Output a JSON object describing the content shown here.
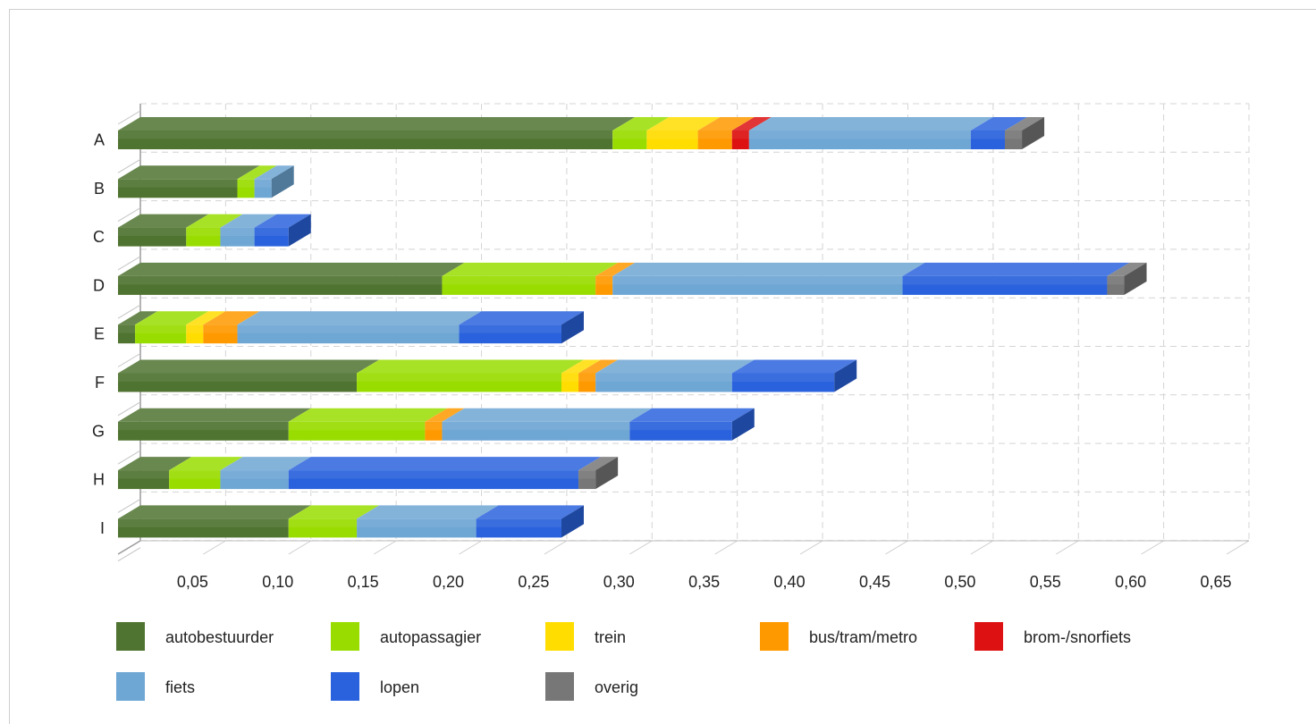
{
  "chart_data": {
    "type": "bar",
    "orientation": "horizontal",
    "stacked": true,
    "three_d": true,
    "title": "",
    "xlabel": "",
    "ylabel": "",
    "xlim": [
      0,
      0.65
    ],
    "x_ticks": [
      "0,05",
      "0,10",
      "0,15",
      "0,20",
      "0,25",
      "0,30",
      "0,35",
      "0,40",
      "0,45",
      "0,50",
      "0,55",
      "0,60",
      "0,65"
    ],
    "grid": true,
    "legend_position": "bottom",
    "categories": [
      "A",
      "B",
      "C",
      "D",
      "E",
      "F",
      "G",
      "H",
      "I"
    ],
    "series": [
      {
        "name": "autobestuurder",
        "color": "#4f7330",
        "values": [
          0.29,
          0.07,
          0.04,
          0.19,
          0.01,
          0.14,
          0.1,
          0.03,
          0.1
        ]
      },
      {
        "name": "autopassagier",
        "color": "#99dd00",
        "values": [
          0.02,
          0.01,
          0.02,
          0.09,
          0.03,
          0.12,
          0.08,
          0.03,
          0.04
        ]
      },
      {
        "name": "trein",
        "color": "#ffdd00",
        "values": [
          0.03,
          0.0,
          0.0,
          0.0,
          0.01,
          0.01,
          0.0,
          0.0,
          0.0
        ]
      },
      {
        "name": "bus/tram/metro",
        "color": "#ff9900",
        "values": [
          0.02,
          0.0,
          0.0,
          0.01,
          0.02,
          0.01,
          0.01,
          0.0,
          0.0
        ]
      },
      {
        "name": "brom-/snorfiets",
        "color": "#dd1111",
        "values": [
          0.01,
          0.0,
          0.0,
          0.0,
          0.0,
          0.0,
          0.0,
          0.0,
          0.0
        ]
      },
      {
        "name": "fiets",
        "color": "#6ea6d4",
        "values": [
          0.13,
          0.01,
          0.02,
          0.17,
          0.13,
          0.08,
          0.11,
          0.04,
          0.07
        ]
      },
      {
        "name": "lopen",
        "color": "#2a62dd",
        "values": [
          0.02,
          0.0,
          0.02,
          0.12,
          0.06,
          0.06,
          0.06,
          0.17,
          0.05
        ]
      },
      {
        "name": "overig",
        "color": "#777777",
        "values": [
          0.01,
          0.0,
          0.0,
          0.01,
          0.0,
          0.0,
          0.0,
          0.01,
          0.0
        ]
      }
    ]
  }
}
